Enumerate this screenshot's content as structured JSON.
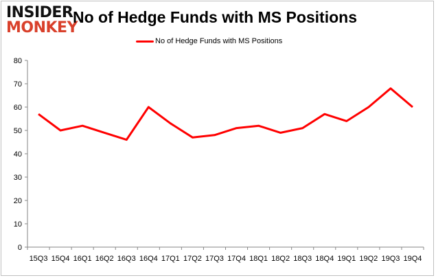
{
  "logo": {
    "line1": "INSIDER",
    "line2": "MONKEY"
  },
  "chart_data": {
    "type": "line",
    "title": "No of Hedge Funds with MS Positions",
    "categories": [
      "15Q3",
      "15Q4",
      "16Q1",
      "16Q2",
      "16Q3",
      "16Q4",
      "17Q1",
      "17Q2",
      "17Q3",
      "17Q4",
      "18Q1",
      "18Q2",
      "18Q3",
      "18Q4",
      "19Q1",
      "19Q2",
      "19Q3",
      "19Q4"
    ],
    "series": [
      {
        "name": "No of Hedge Funds with MS Positions",
        "color": "#ff0000",
        "values": [
          57,
          50,
          52,
          49,
          46,
          60,
          53,
          47,
          48,
          51,
          52,
          49,
          51,
          57,
          54,
          60,
          68,
          60
        ]
      }
    ],
    "ylim": [
      0,
      80
    ],
    "yticks": [
      0,
      10,
      20,
      30,
      40,
      50,
      60,
      70,
      80
    ],
    "grid": false,
    "legend": "top-center",
    "xlabel": "",
    "ylabel": ""
  }
}
